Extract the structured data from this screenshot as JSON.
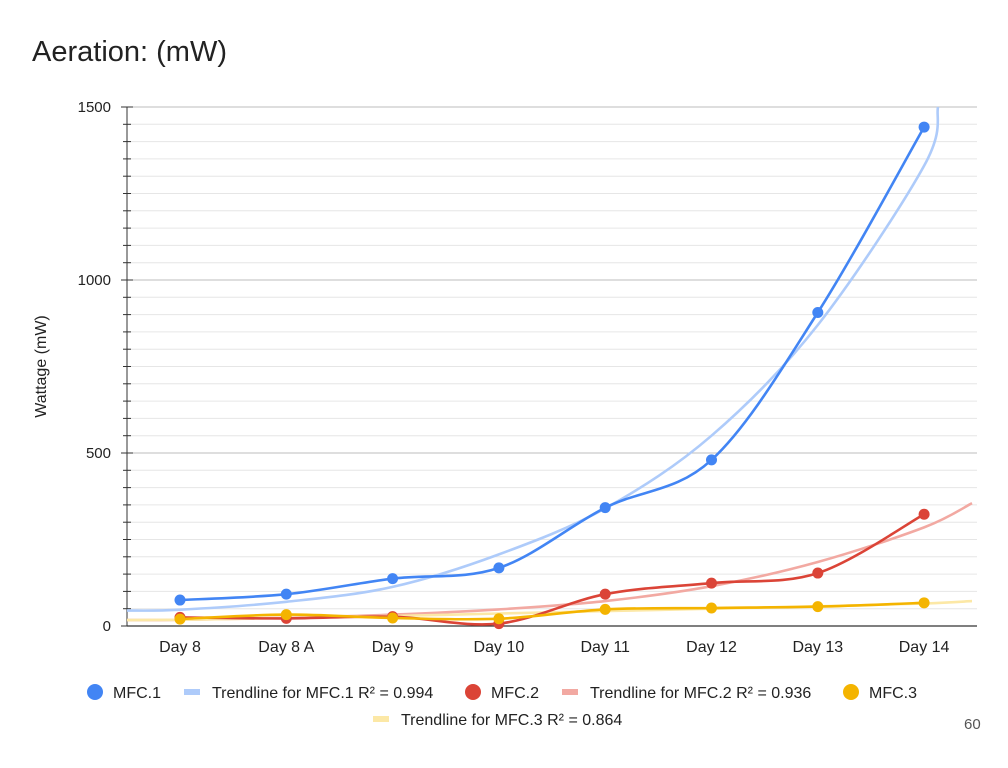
{
  "page_number": "60",
  "chart_data": {
    "type": "line",
    "title": "Aeration: (mW)",
    "ylabel": "Wattage (mW)",
    "xlabel": "",
    "categories": [
      "Day 8",
      "Day 8 A",
      "Day 9",
      "Day 10",
      "Day 11",
      "Day 12",
      "Day 13",
      "Day 14"
    ],
    "ylim": [
      0,
      1500
    ],
    "y_ticks": [
      0,
      500,
      1000,
      1500
    ],
    "y_tick_labels": [
      "0",
      "500",
      "1000",
      "1500"
    ],
    "grid": true,
    "legend_position": "bottom",
    "series": [
      {
        "name": "MFC.1",
        "color": "#4285f4",
        "values": [
          75,
          92,
          137,
          168,
          342,
          480,
          906,
          1442
        ]
      },
      {
        "name": "MFC.2",
        "color": "#db4437",
        "values": [
          25,
          22,
          27,
          7,
          92,
          124,
          153,
          323
        ]
      },
      {
        "name": "MFC.3",
        "color": "#f4b400",
        "values": [
          20,
          33,
          23,
          21,
          48,
          52,
          56,
          67
        ]
      }
    ],
    "trendlines": [
      {
        "label": "Trendline for MFC.1 R² = 0.994",
        "color": "#aecbfa",
        "values": [
          47,
          70,
          113,
          207,
          340,
          550,
          870,
          1330
        ],
        "end_value": 1500
      },
      {
        "label": "Trendline for MFC.2 R² = 0.936",
        "color": "#f2a9a2",
        "values": [
          18,
          24,
          33,
          48,
          72,
          115,
          185,
          285
        ],
        "end_value": 355
      },
      {
        "label": "Trendline for MFC.3 R² = 0.864",
        "color": "#fce8a6",
        "values": [
          18,
          23,
          29,
          36,
          43,
          50,
          57,
          65
        ],
        "end_value": 72
      }
    ]
  }
}
